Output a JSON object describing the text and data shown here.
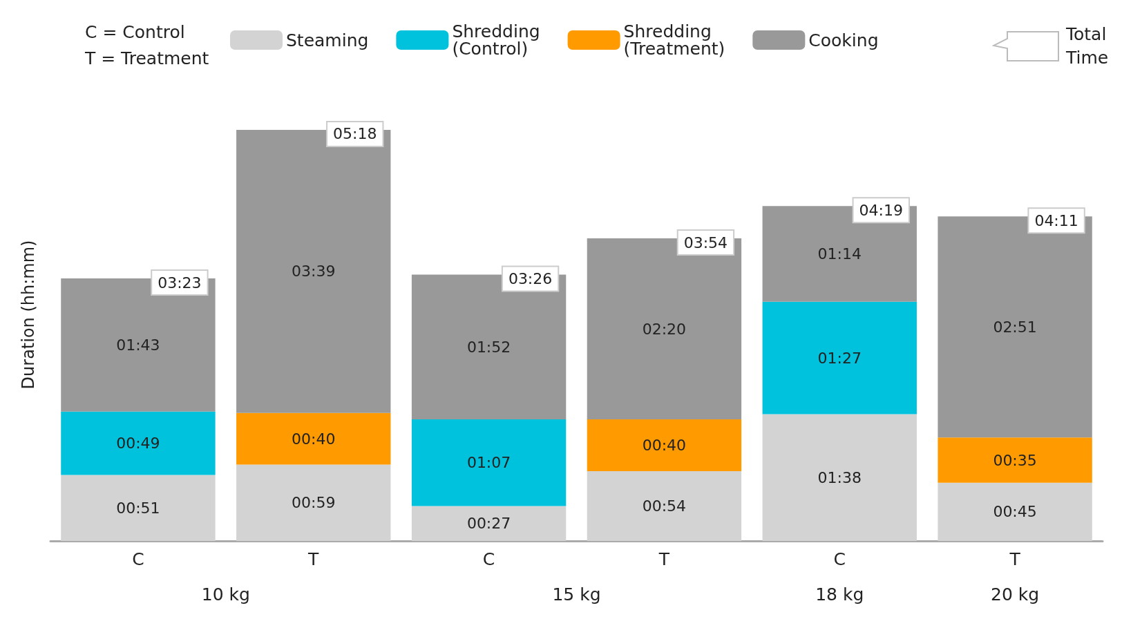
{
  "chart_data": {
    "type": "bar",
    "stacked": true,
    "ylabel": "Duration (hh:mm)",
    "categories": [
      "C",
      "T",
      "C",
      "T",
      "C",
      "T"
    ],
    "series": [
      {
        "name": "Steaming",
        "color": "#d3d3d3",
        "values": [
          51,
          59,
          27,
          54,
          98,
          45
        ],
        "value_labels": [
          "00:51",
          "00:59",
          "00:27",
          "00:54",
          "01:38",
          "00:45"
        ]
      },
      {
        "name": "Shredding (Control)",
        "color": "#00c2dc",
        "values": [
          49,
          null,
          67,
          null,
          87,
          null
        ],
        "value_labels": [
          "00:49",
          null,
          "01:07",
          null,
          "01:27",
          null
        ]
      },
      {
        "name": "Shredding (Treatment)",
        "color": "#ff9a00",
        "values": [
          null,
          40,
          null,
          40,
          null,
          35
        ],
        "value_labels": [
          null,
          "00:40",
          null,
          "00:40",
          null,
          "00:35"
        ]
      },
      {
        "name": "Cooking",
        "color": "#999999",
        "values": [
          103,
          219,
          112,
          140,
          74,
          171
        ],
        "value_labels": [
          "01:43",
          "03:39",
          "01:52",
          "02:20",
          "01:14",
          "02:51"
        ]
      }
    ],
    "totals": [
      "03:23",
      "05:18",
      "03:26",
      "03:54",
      "04:19",
      "04:11"
    ],
    "annotations": [
      "10 kg",
      "15 kg",
      "18 kg",
      "20 kg",
      "C = Control",
      "T = Treatment",
      "Total Time"
    ],
    "legend": "top",
    "grid": false
  }
}
